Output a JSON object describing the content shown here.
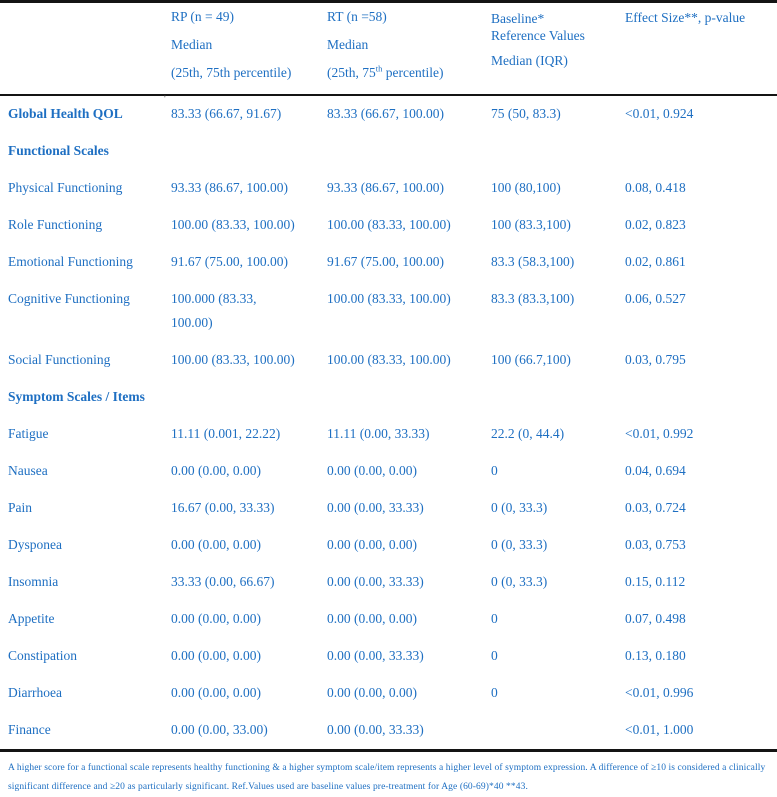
{
  "accent_color": "#1e6fc2",
  "rule_color": "#141414",
  "header": {
    "group_col": "",
    "rp": {
      "line1": "RP (n = 49)",
      "line2": "Median",
      "line3": "(25th, 75th percentile)"
    },
    "rt": {
      "line1": "RT (n =58)",
      "line2": "Median",
      "line3_pre": "(25th, 75",
      "line3_sup": "th",
      "line3_post": " percentile)"
    },
    "baseline": {
      "line1": "Baseline*\nReference Values",
      "line2": "Median (IQR)"
    },
    "effect": "Effect Size**, p-value"
  },
  "stray_mark": "'",
  "rows": [
    {
      "label": "Global Health QOL",
      "rp": "83.33 (66.67, 91.67)",
      "rt": "83.33 (66.67, 100.00)",
      "baseline": "75 (50, 83.3)",
      "effect": "<0.01, 0.924"
    },
    {
      "label": "Functional Scales",
      "rp": "",
      "rt": "",
      "baseline": "",
      "effect": ""
    },
    {
      "label": "Physical Functioning",
      "rp": "93.33 (86.67, 100.00)",
      "rt": "93.33 (86.67, 100.00)",
      "baseline": "100 (80,100)",
      "effect": "0.08, 0.418"
    },
    {
      "label": "Role Functioning",
      "rp": "100.00 (83.33, 100.00)",
      "rt": "100.00 (83.33, 100.00)",
      "baseline": "100 (83.3,100)",
      "effect": "0.02, 0.823"
    },
    {
      "label": "Emotional Functioning",
      "rp": "91.67 (75.00, 100.00)",
      "rt": "91.67 (75.00, 100.00)",
      "baseline": "83.3 (58.3,100)",
      "effect": "0.02, 0.861"
    },
    {
      "label": "Cognitive Functioning",
      "rp": "100.000 (83.33,\n100.00)",
      "rt": "100.00 (83.33, 100.00)",
      "baseline": "83.3 (83.3,100)",
      "effect": "0.06, 0.527"
    },
    {
      "label": "Social Functioning",
      "rp": "100.00 (83.33, 100.00)",
      "rt": "100.00 (83.33, 100.00)",
      "baseline": "100 (66.7,100)",
      "effect": "0.03, 0.795"
    },
    {
      "label": "Symptom Scales / Items",
      "rp": "",
      "rt": "",
      "baseline": "",
      "effect": ""
    },
    {
      "label": "Fatigue",
      "rp": "11.11 (0.001, 22.22)",
      "rt": "11.11 (0.00, 33.33)",
      "baseline": "22.2 (0, 44.4)",
      "effect": "<0.01, 0.992"
    },
    {
      "label": "Nausea",
      "rp": "0.00 (0.00, 0.00)",
      "rt": "0.00 (0.00, 0.00)",
      "baseline": "0",
      "effect": "0.04, 0.694"
    },
    {
      "label": "Pain",
      "rp": "16.67 (0.00, 33.33)",
      "rt": "0.00 (0.00, 33.33)",
      "baseline": "0 (0, 33.3)",
      "effect": "0.03, 0.724"
    },
    {
      "label": "Dysponea",
      "rp": "0.00 (0.00, 0.00)",
      "rt": "0.00 (0.00, 0.00)",
      "baseline": "0 (0, 33.3)",
      "effect": "0.03, 0.753"
    },
    {
      "label": "Insomnia",
      "rp": "33.33 (0.00, 66.67)",
      "rt": "0.00 (0.00, 33.33)",
      "baseline": "0 (0, 33.3)",
      "effect": "0.15, 0.112"
    },
    {
      "label": "Appetite",
      "rp": "0.00 (0.00, 0.00)",
      "rt": "0.00 (0.00, 0.00)",
      "baseline": "0",
      "effect": "0.07, 0.498"
    },
    {
      "label": "Constipation",
      "rp": "0.00 (0.00, 0.00)",
      "rt": "0.00 (0.00, 33.33)",
      "baseline": "0",
      "effect": "0.13, 0.180"
    },
    {
      "label": "Diarrhoea",
      "rp": "0.00 (0.00, 0.00)",
      "rt": "0.00 (0.00, 0.00)",
      "baseline": "0",
      "effect": "<0.01, 0.996"
    },
    {
      "label": "Finance",
      "rp": "0.00 (0.00, 33.00)",
      "rt": "0.00 (0.00, 33.33)",
      "baseline": "",
      "effect": "<0.01, 1.000"
    }
  ],
  "footnote": "A higher score for a functional scale represents healthy functioning & a higher symptom scale/item represents a higher level of symptom expression. A difference of ≥10 is considered a clinically\nsignificant difference and ≥20 as particularly significant. Ref.Values used are baseline values pre-treatment for Age (60-69)*40 **43."
}
